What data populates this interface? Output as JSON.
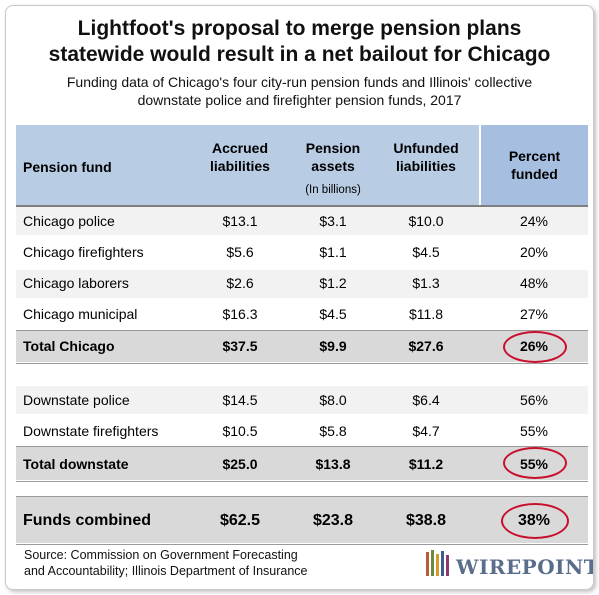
{
  "logo_text": "WIREPOINTS",
  "chart_data": {
    "type": "table",
    "title_line1": "Lightfoot's proposal to merge pension plans",
    "title_line2": "statewide would result in a net bailout for Chicago",
    "subtitle_line1": "Funding data of Chicago's four city-run pension funds and Illinois' collective",
    "subtitle_line2": "downstate police and firefighter pension funds, 2017",
    "columns": [
      "Pension fund",
      "Accrued liabilities",
      "Pension assets",
      "Unfunded liabilities",
      "Percent funded"
    ],
    "column_header_lines": {
      "accrued": [
        "Accrued",
        "liabilities"
      ],
      "assets": [
        "Pension",
        "assets"
      ],
      "unfunded": [
        "Unfunded",
        "liabilities"
      ],
      "percent": [
        "Percent",
        "funded"
      ]
    },
    "units_note": "(In billions)",
    "rows": [
      {
        "fund": "Chicago police",
        "accrued": "$13.1",
        "assets": "$3.1",
        "unfunded": "$10.0",
        "percent": "24%",
        "kind": "data"
      },
      {
        "fund": "Chicago firefighters",
        "accrued": "$5.6",
        "assets": "$1.1",
        "unfunded": "$4.5",
        "percent": "20%",
        "kind": "data"
      },
      {
        "fund": "Chicago laborers",
        "accrued": "$2.6",
        "assets": "$1.2",
        "unfunded": "$1.3",
        "percent": "48%",
        "kind": "data"
      },
      {
        "fund": "Chicago municipal",
        "accrued": "$16.3",
        "assets": "$4.5",
        "unfunded": "$11.8",
        "percent": "27%",
        "kind": "data"
      },
      {
        "fund": "Total Chicago",
        "accrued": "$37.5",
        "assets": "$9.9",
        "unfunded": "$27.6",
        "percent": "26%",
        "kind": "total"
      },
      {
        "fund": "Downstate police",
        "accrued": "$14.5",
        "assets": "$8.0",
        "unfunded": "$6.4",
        "percent": "56%",
        "kind": "data"
      },
      {
        "fund": "Downstate firefighters",
        "accrued": "$10.5",
        "assets": "$5.8",
        "unfunded": "$4.7",
        "percent": "55%",
        "kind": "data"
      },
      {
        "fund": "Total downstate",
        "accrued": "$25.0",
        "assets": "$13.8",
        "unfunded": "$11.2",
        "percent": "55%",
        "kind": "total"
      },
      {
        "fund": "Funds combined",
        "accrued": "$62.5",
        "assets": "$23.8",
        "unfunded": "$38.8",
        "percent": "38%",
        "kind": "grand"
      }
    ],
    "source_line1": "Source: Commission on Government Forecasting",
    "source_line2": "and Accountability; Illinois Department of Insurance",
    "highlight_color": "#c8102e",
    "header_color": "#b8cce4"
  }
}
